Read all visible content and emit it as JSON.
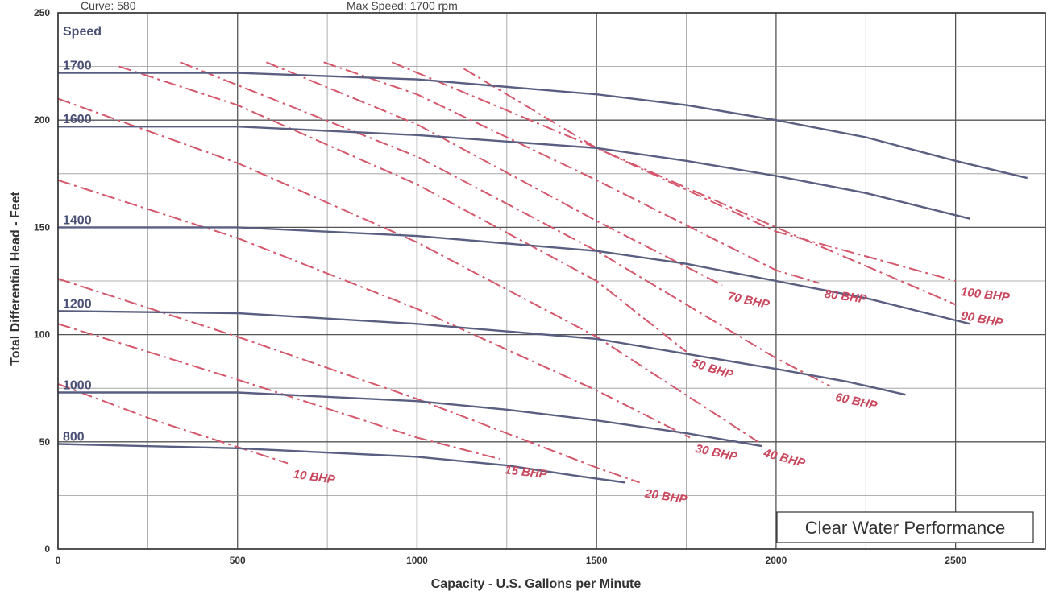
{
  "header": {
    "left": "Curve: 580",
    "middle": "Max Speed: 1700 rpm"
  },
  "chart_data": {
    "type": "line",
    "xlabel": "Capacity - U.S. Gallons per Minute",
    "ylabel": "Total Differential Head - Feet",
    "xlim": [
      0,
      2750
    ],
    "ylim": [
      0,
      250
    ],
    "x_ticks": [
      0,
      500,
      1000,
      1500,
      2000,
      2500
    ],
    "y_ticks": [
      0,
      50,
      100,
      150,
      200,
      250
    ],
    "grid": true,
    "annotation": "Clear Water Performance",
    "speed_header": "Speed",
    "speed_curves": [
      {
        "name": "1700",
        "points": [
          [
            0,
            222
          ],
          [
            500,
            222
          ],
          [
            1000,
            219
          ],
          [
            1500,
            212
          ],
          [
            1750,
            207
          ],
          [
            2000,
            200
          ],
          [
            2250,
            192
          ],
          [
            2500,
            181
          ],
          [
            2700,
            173
          ]
        ]
      },
      {
        "name": "1600",
        "points": [
          [
            0,
            197
          ],
          [
            500,
            197
          ],
          [
            1000,
            193
          ],
          [
            1500,
            187
          ],
          [
            1750,
            181
          ],
          [
            2000,
            174
          ],
          [
            2250,
            166
          ],
          [
            2540,
            154
          ]
        ]
      },
      {
        "name": "1400",
        "points": [
          [
            0,
            150
          ],
          [
            500,
            150
          ],
          [
            1000,
            146
          ],
          [
            1500,
            139
          ],
          [
            1750,
            133
          ],
          [
            2000,
            125
          ],
          [
            2250,
            117
          ],
          [
            2540,
            105
          ]
        ]
      },
      {
        "name": "1200",
        "points": [
          [
            0,
            111
          ],
          [
            500,
            110
          ],
          [
            1000,
            105
          ],
          [
            1500,
            98
          ],
          [
            1750,
            91
          ],
          [
            2000,
            84
          ],
          [
            2200,
            78
          ],
          [
            2360,
            72
          ]
        ]
      },
      {
        "name": "1000",
        "points": [
          [
            0,
            73
          ],
          [
            500,
            73
          ],
          [
            1000,
            69
          ],
          [
            1250,
            65
          ],
          [
            1500,
            60
          ],
          [
            1750,
            54
          ],
          [
            1960,
            48
          ]
        ]
      },
      {
        "name": "800",
        "points": [
          [
            0,
            49
          ],
          [
            500,
            47
          ],
          [
            1000,
            43
          ],
          [
            1250,
            39
          ],
          [
            1450,
            34
          ],
          [
            1580,
            31
          ]
        ]
      }
    ],
    "bhp_lines": [
      {
        "name": "10 BHP",
        "points": [
          [
            0,
            77
          ],
          [
            270,
            60
          ],
          [
            640,
            40
          ]
        ]
      },
      {
        "name": "15 BHP",
        "points": [
          [
            0,
            105
          ],
          [
            500,
            79
          ],
          [
            1000,
            52
          ],
          [
            1230,
            42
          ]
        ]
      },
      {
        "name": "20 BHP",
        "points": [
          [
            0,
            126
          ],
          [
            500,
            99
          ],
          [
            1000,
            70
          ],
          [
            1500,
            38
          ],
          [
            1620,
            31
          ]
        ]
      },
      {
        "name": "30 BHP",
        "points": [
          [
            0,
            172
          ],
          [
            500,
            145
          ],
          [
            1000,
            112
          ],
          [
            1500,
            74
          ],
          [
            1760,
            52
          ]
        ]
      },
      {
        "name": "40 BHP",
        "points": [
          [
            0,
            210
          ],
          [
            500,
            180
          ],
          [
            1000,
            143
          ],
          [
            1500,
            99
          ],
          [
            1950,
            50
          ]
        ]
      },
      {
        "name": "50 BHP",
        "points": [
          [
            170,
            225
          ],
          [
            500,
            207
          ],
          [
            1000,
            170
          ],
          [
            1500,
            125
          ],
          [
            1750,
            92
          ]
        ]
      },
      {
        "name": "60 BHP",
        "points": [
          [
            340,
            227
          ],
          [
            1000,
            183
          ],
          [
            1500,
            139
          ],
          [
            2000,
            89
          ],
          [
            2150,
            76
          ]
        ]
      },
      {
        "name": "70 BHP",
        "points": [
          [
            580,
            227
          ],
          [
            1000,
            198
          ],
          [
            1500,
            153
          ],
          [
            1850,
            123
          ]
        ]
      },
      {
        "name": "80 BHP",
        "points": [
          [
            740,
            227
          ],
          [
            1000,
            212
          ],
          [
            1500,
            172
          ],
          [
            2000,
            130
          ],
          [
            2120,
            124
          ]
        ]
      },
      {
        "name": "90 BHP",
        "points": [
          [
            930,
            227
          ],
          [
            1500,
            187
          ],
          [
            2000,
            150
          ],
          [
            2500,
            114
          ]
        ]
      },
      {
        "name": "100 BHP",
        "points": [
          [
            1130,
            224
          ],
          [
            1500,
            187
          ],
          [
            2000,
            148
          ],
          [
            2500,
            125
          ]
        ]
      }
    ]
  }
}
